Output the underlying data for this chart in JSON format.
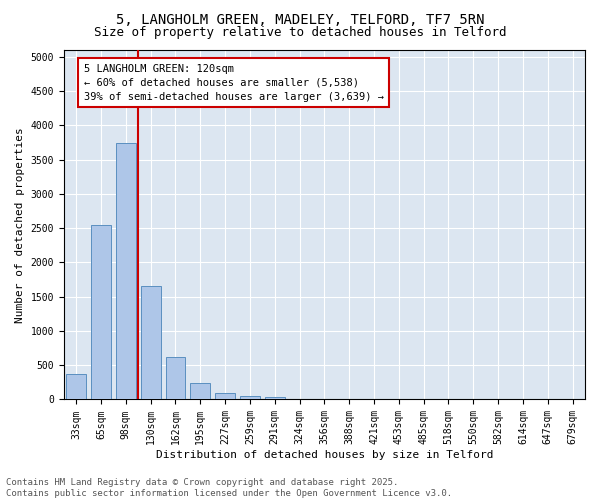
{
  "title_line1": "5, LANGHOLM GREEN, MADELEY, TELFORD, TF7 5RN",
  "title_line2": "Size of property relative to detached houses in Telford",
  "xlabel": "Distribution of detached houses by size in Telford",
  "ylabel": "Number of detached properties",
  "categories": [
    "33sqm",
    "65sqm",
    "98sqm",
    "130sqm",
    "162sqm",
    "195sqm",
    "227sqm",
    "259sqm",
    "291sqm",
    "324sqm",
    "356sqm",
    "388sqm",
    "421sqm",
    "453sqm",
    "485sqm",
    "518sqm",
    "550sqm",
    "582sqm",
    "614sqm",
    "647sqm",
    "679sqm"
  ],
  "values": [
    375,
    2550,
    3750,
    1650,
    620,
    235,
    95,
    45,
    35,
    0,
    0,
    0,
    0,
    0,
    0,
    0,
    0,
    0,
    0,
    0,
    0
  ],
  "bar_color": "#aec6e8",
  "bar_edge_color": "#5a8fc0",
  "vline_x": 2.5,
  "vline_color": "#cc0000",
  "annotation_text": "5 LANGHOLM GREEN: 120sqm\n← 60% of detached houses are smaller (5,538)\n39% of semi-detached houses are larger (3,639) →",
  "annotation_box_color": "#cc0000",
  "ylim": [
    0,
    5100
  ],
  "yticks": [
    0,
    500,
    1000,
    1500,
    2000,
    2500,
    3000,
    3500,
    4000,
    4500,
    5000
  ],
  "background_color": "#dce6f1",
  "footer_line1": "Contains HM Land Registry data © Crown copyright and database right 2025.",
  "footer_line2": "Contains public sector information licensed under the Open Government Licence v3.0.",
  "title_fontsize": 10,
  "subtitle_fontsize": 9,
  "axis_label_fontsize": 8,
  "tick_fontsize": 7,
  "annotation_fontsize": 7.5,
  "footer_fontsize": 6.5
}
